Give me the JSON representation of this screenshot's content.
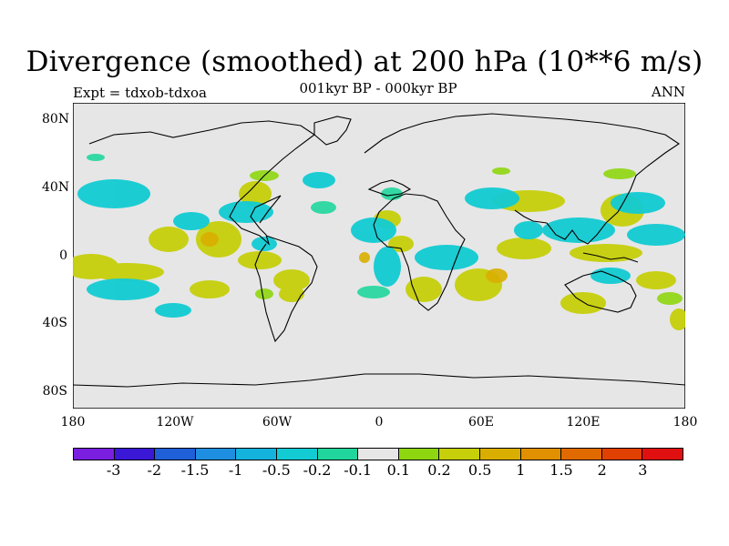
{
  "header": {
    "title": "Divergence (smoothed) at 200 hPa (10**6 m/s)",
    "experiment": "Expt = tdxob-tdxoa",
    "period": "001kyr BP - 000kyr BP",
    "season": "ANN"
  },
  "map": {
    "projection": "cylindrical equidistant",
    "background_color": "#e6e6e6",
    "y_ticks": [
      "80N",
      "40N",
      "0",
      "40S",
      "80S"
    ],
    "x_ticks": [
      "180",
      "120W",
      "60W",
      "0",
      "60E",
      "120E",
      "180"
    ],
    "x_range": [
      -180,
      180
    ],
    "y_range": [
      -90,
      90
    ]
  },
  "colorbar": {
    "colors": [
      "#7a1fe0",
      "#3b17d6",
      "#1f5fd8",
      "#1e8fe0",
      "#13b3de",
      "#12cbd3",
      "#20d69c",
      "#e6e6e6",
      "#8ed610",
      "#c6cf0a",
      "#d9ae00",
      "#e09000",
      "#e06a00",
      "#e04000",
      "#e01010"
    ],
    "labels": [
      "-3",
      "-2",
      "-1.5",
      "-1",
      "-0.5",
      "-0.2",
      "-0.1",
      "0.1",
      "0.2",
      "0.5",
      "1",
      "1.5",
      "2",
      "3"
    ]
  }
}
